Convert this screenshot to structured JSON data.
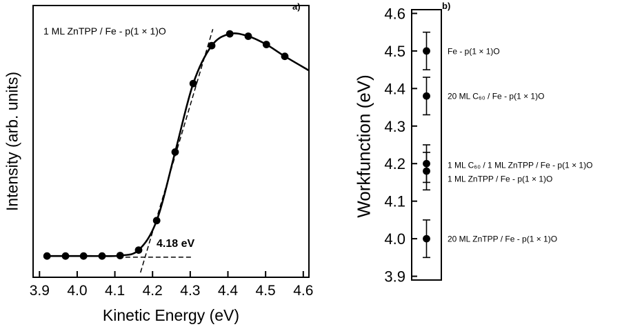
{
  "figure": {
    "background": "#ffffff",
    "ink": "#000000",
    "type": "two-panel scientific figure (photoemission secondary-electron cutoff and workfunction summary)"
  },
  "chart_data": [
    {
      "id": "panel_a",
      "type": "line",
      "panel_label": "a)",
      "xlabel": "Kinetic Energy (eV)",
      "ylabel": "Intensity (arb. units)",
      "annotation": "1 ML ZnTPP / Fe - p(1 × 1)O",
      "threshold_label": "4.18 eV",
      "threshold_value_eV": 4.18,
      "xlim": [
        3.883,
        4.615
      ],
      "ylim": [
        -0.03,
        1.12
      ],
      "grid": false,
      "x_ticks": [
        3.9,
        4.0,
        4.1,
        4.2,
        4.3,
        4.4,
        4.5,
        4.6
      ],
      "x_tick_labels": [
        "3.9",
        "4.0",
        "4.1",
        "4.2",
        "4.3",
        "4.4",
        "4.5",
        "4.6"
      ],
      "x": [
        3.92,
        3.969,
        4.017,
        4.066,
        4.114,
        4.163,
        4.211,
        4.26,
        4.308,
        4.357,
        4.405,
        4.454,
        4.502,
        4.551
      ],
      "y": [
        0.06,
        0.06,
        0.06,
        0.06,
        0.062,
        0.085,
        0.21,
        0.5,
        0.79,
        0.95,
        1.0,
        0.99,
        0.955,
        0.905
      ],
      "line_tail": {
        "x": 4.615,
        "y": 0.845
      },
      "guides": [
        {
          "name": "baseline-dashed-guide",
          "x1": 4.128,
          "y1": 0.055,
          "x2": 4.305,
          "y2": 0.055
        },
        {
          "name": "tangent-dashed-guide",
          "x1": 4.168,
          "y1": -0.01,
          "x2": 4.36,
          "y2": 1.02
        }
      ]
    },
    {
      "id": "panel_b",
      "type": "scatter",
      "panel_label": "b)",
      "ylabel": "Workfunction (eV)",
      "ylim": [
        3.89,
        4.61
      ],
      "grid": false,
      "y_ticks": [
        3.9,
        4.0,
        4.1,
        4.2,
        4.3,
        4.4,
        4.5,
        4.6
      ],
      "y_tick_labels": [
        "3.9",
        "4.0",
        "4.1",
        "4.2",
        "4.3",
        "4.4",
        "4.5",
        "4.6"
      ],
      "points": [
        {
          "label": "Fe - p(1 × 1)O",
          "value": 4.5,
          "error": 0.05,
          "label_dy": 0
        },
        {
          "label": "20 ML C₆₀ / Fe - p(1 × 1)O",
          "value": 4.38,
          "error": 0.05,
          "label_dy": 0
        },
        {
          "label": "1 ML C₆₀ / 1 ML ZnTPP / Fe - p(1 × 1)O",
          "value": 4.2,
          "error": 0.05,
          "label_dy": 2
        },
        {
          "label": "1 ML ZnTPP / Fe - p(1 × 1)O",
          "value": 4.18,
          "error": 0.05,
          "label_dy": 11
        },
        {
          "label": "20 ML ZnTPP / Fe - p(1 × 1)O",
          "value": 4.0,
          "error": 0.05,
          "label_dy": 0
        }
      ]
    }
  ]
}
